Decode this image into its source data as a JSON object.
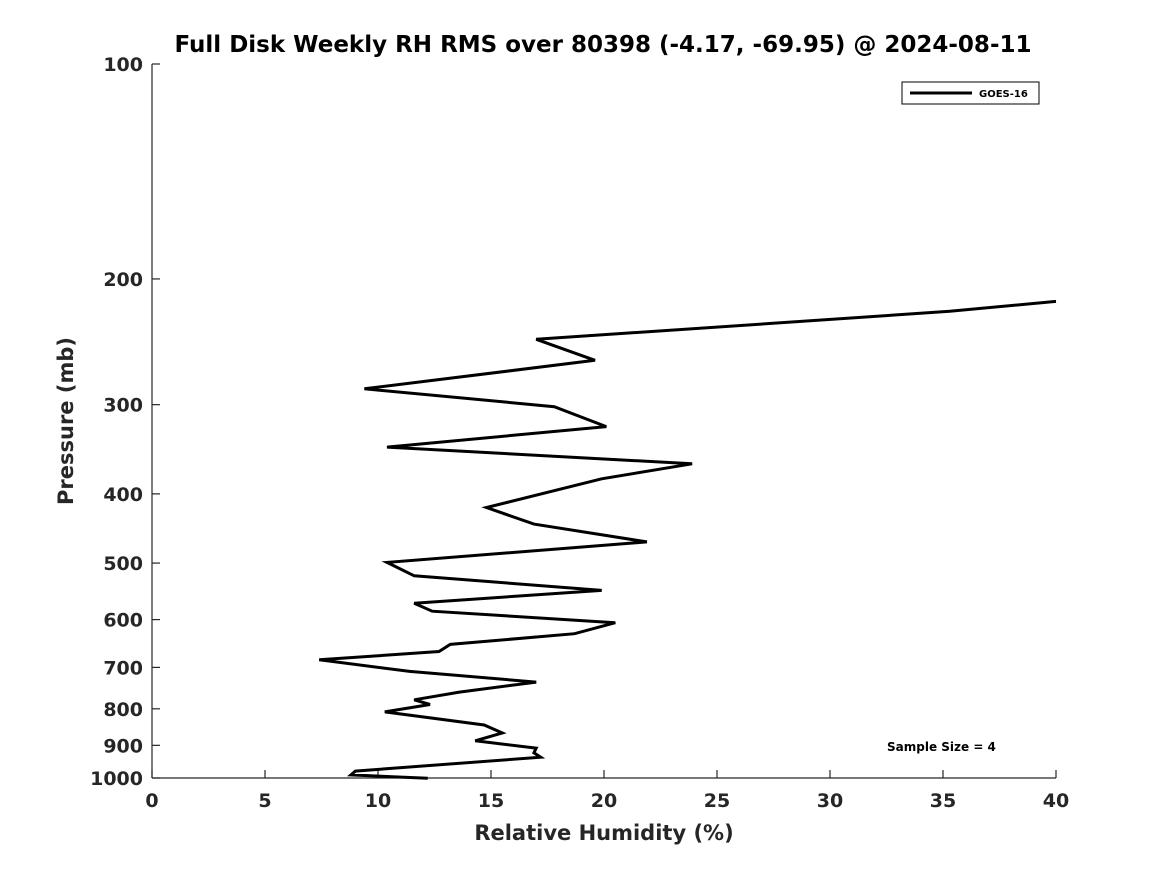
{
  "chart_data": {
    "type": "line",
    "title": "Full Disk Weekly RH RMS over 80398 (-4.17, -69.95) @ 2024-08-11",
    "xlabel": "Relative Humidity (%)",
    "ylabel": "Pressure (mb)",
    "xlim": [
      0,
      40
    ],
    "ylim": [
      100,
      1000
    ],
    "y_scale": "log",
    "y_inverted": true,
    "x_ticks": [
      0,
      5,
      10,
      15,
      20,
      25,
      30,
      35,
      40
    ],
    "x_tick_labels": [
      "0",
      "5",
      "10",
      "15",
      "20",
      "25",
      "30",
      "35",
      "40"
    ],
    "y_ticks": [
      100,
      200,
      300,
      400,
      500,
      600,
      700,
      800,
      900,
      1000
    ],
    "y_tick_labels": [
      "100",
      "200",
      "300",
      "400",
      "500",
      "600",
      "700",
      "800",
      "900",
      "1000"
    ],
    "legend_position": "top-right",
    "annotation": "Sample Size = 4",
    "series": [
      {
        "name": "GOES-16",
        "color": "#000000",
        "x": [
          40.0,
          35.3,
          17.0,
          19.6,
          9.4,
          17.8,
          20.1,
          10.4,
          23.9,
          19.9,
          14.8,
          16.9,
          21.9,
          10.4,
          11.6,
          19.9,
          11.6,
          12.4,
          20.5,
          18.7,
          13.2,
          12.7,
          7.4,
          11.4,
          17.0,
          13.6,
          11.6,
          12.3,
          10.3,
          14.7,
          15.5,
          14.3,
          17.0,
          16.9,
          17.2,
          9.0,
          8.8,
          12.2
        ],
        "y": [
          215,
          222,
          243,
          260,
          285,
          302,
          322,
          344,
          363,
          381,
          418,
          441,
          467,
          499,
          521,
          546,
          569,
          584,
          606,
          628,
          650,
          665,
          683,
          709,
          734,
          758,
          777,
          789,
          808,
          843,
          865,
          887,
          908,
          922,
          935,
          978,
          990,
          1001
        ]
      }
    ]
  }
}
